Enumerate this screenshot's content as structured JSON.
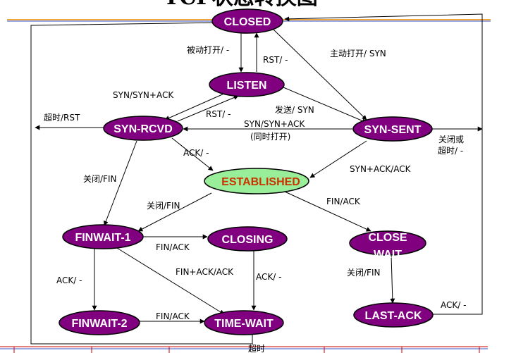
{
  "title_fragment": "TCP状态转换图",
  "colors": {
    "state_fill": "#800080",
    "state_text": "#ffffff",
    "established_fill": "#99ee99",
    "established_text": "#cc3300",
    "rule_orange": "#e68a00",
    "rule_blue": "#3355cc",
    "rule_red": "#cc0000"
  },
  "states": {
    "closed": "CLOSED",
    "listen": "LISTEN",
    "syn_rcvd": "SYN-RCVD",
    "syn_sent": "SYN-SENT",
    "established": "ESTABLISHED",
    "finwait1": "FINWAIT-1",
    "closing": "CLOSING",
    "close_wait_1": "CLOSE",
    "close_wait_2": "WAIT",
    "finwait2": "FINWAIT-2",
    "time_wait": "TIME-WAIT",
    "last_ack": "LAST-ACK"
  },
  "edges": {
    "passive_open": "被动打开/ -",
    "rst_closed": "RST/ -",
    "active_open": "主动打开/ SYN",
    "syn_synack": "SYN/SYN+ACK",
    "rst_listen": "RST/ -",
    "send_syn": "发送/ SYN",
    "timeout_rst": "超时/RST",
    "simul_open_1": "SYN/SYN+ACK",
    "simul_open_2": "(同时打开)",
    "close_or_1": "关闭或",
    "close_or_2": "超时/ -",
    "ack_rcvd": "ACK/ -",
    "synack_ack": "SYN+ACK/ACK",
    "close_fin_rcvd": "关闭/FIN",
    "close_fin_est": "关闭/FIN",
    "fin_ack_est": "FIN/ACK",
    "fin_ack_fw1": "FIN/ACK",
    "finack_ack": "FIN+ACK/ACK",
    "ack_fw1": "ACK/ -",
    "ack_closing": "ACK/ -",
    "close_fin_cw": "关闭/FIN",
    "fin_ack_fw2": "FIN/ACK",
    "ack_last": "ACK/ -",
    "timeout": "超时"
  }
}
